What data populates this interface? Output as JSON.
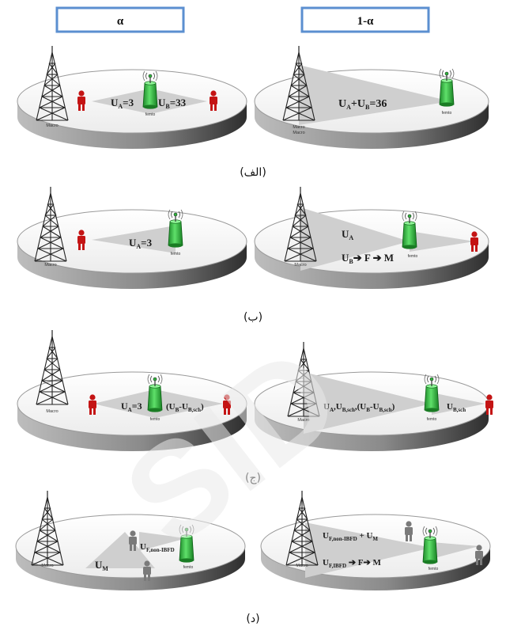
{
  "headers": {
    "left": "α",
    "right": "1-α"
  },
  "captions": [
    "(الف)",
    "(ب)",
    "(ج)",
    "(د)"
  ],
  "macro_label": "Macro",
  "femto_label": "femto",
  "panels": {
    "a_left": {
      "u1": "U",
      "u1_sub": "A",
      "u1_val": "=3",
      "u2": "U",
      "u2_sub": "B",
      "u2_val": "=33"
    },
    "a_right": {
      "t1": "U",
      "t1_sub": "A",
      "t2": "+U",
      "t2_sub": "B",
      "t3": "=36",
      "macro_extra": "Macro"
    },
    "b_left": {
      "u1": "U",
      "u1_sub": "A",
      "u1_val": "=3"
    },
    "b_right": {
      "ua": "U",
      "ua_sub": "A",
      "ub": "U",
      "ub_sub": "B",
      "chain": "➔ F ➔ M"
    },
    "c_left": {
      "u1": "U",
      "u1_sub": "A",
      "u1_val": "=3",
      "u2": "(U",
      "u2_sub": "B",
      "u2_mid": "-U",
      "u2_sub2": "B,sch",
      "u2_end": ")"
    },
    "c_right": {
      "l1": "U",
      "l1_sub": "A",
      "l2": ",U",
      "l2_sub": "B,sch",
      "l3": ",(U",
      "l3_sub": "B",
      "l4": "-U",
      "l4_sub": "B,sch",
      "l5": ")",
      "r1": "U",
      "r1_sub": "B,sch"
    },
    "d_left": {
      "um": "U",
      "um_sub": "M",
      "uf": "U",
      "uf_sub": "F,non-IBFD"
    },
    "d_right": {
      "t1": "U",
      "t1_sub": "F,non-IBFD",
      "t2": " + U",
      "t2_sub": "M",
      "b1": "U",
      "b1_sub": "F,IBFD",
      "b2": " ➔ F➔ M"
    }
  },
  "watermark": "SID"
}
